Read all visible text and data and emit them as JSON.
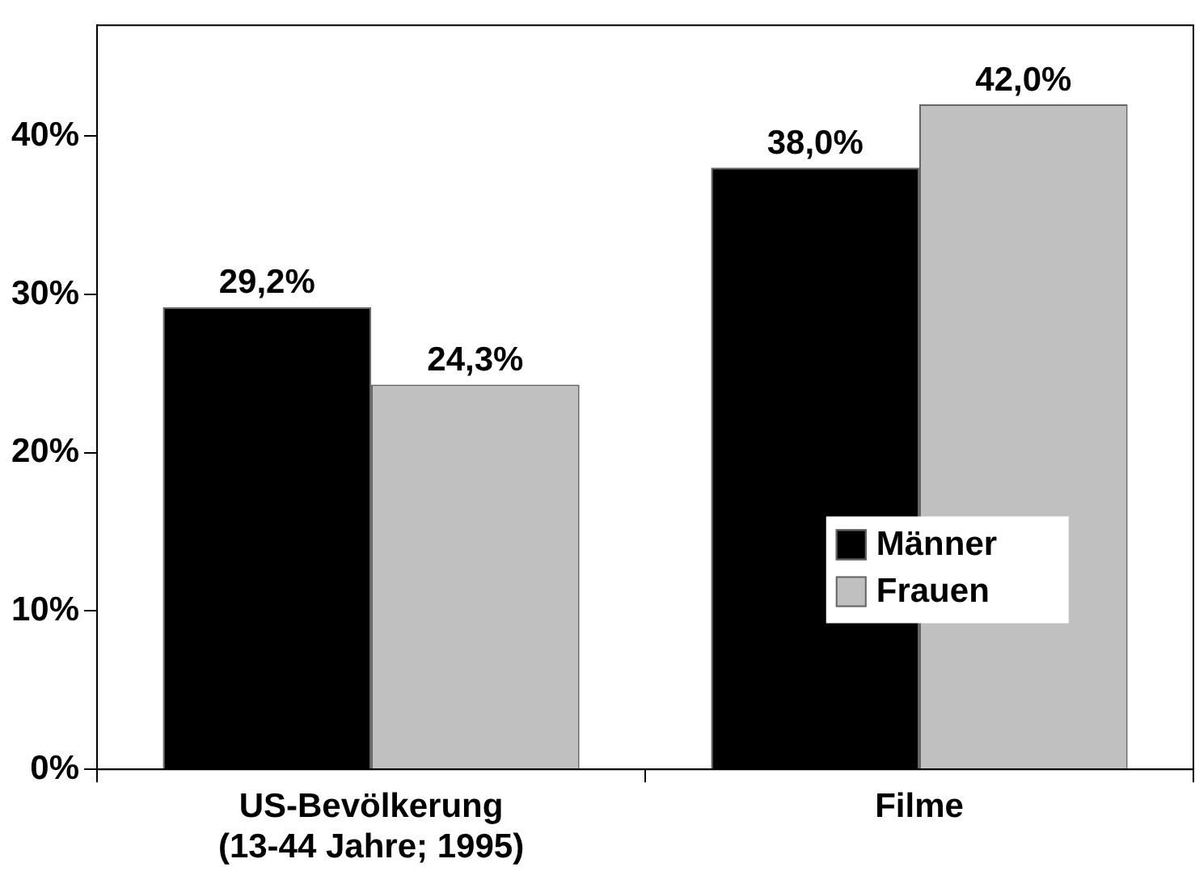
{
  "chart_data": {
    "type": "bar",
    "categories": [
      "US-Bevölkerung\n(13-44 Jahre; 1995)",
      "Filme"
    ],
    "series": [
      {
        "name": "Männer",
        "color": "#000000",
        "values": [
          29.2,
          38.0
        ],
        "value_labels": [
          "29,2%",
          "38,0%"
        ]
      },
      {
        "name": "Frauen",
        "color": "#c0c0c0",
        "values": [
          24.3,
          42.0
        ],
        "value_labels": [
          "24,3%",
          "42,0%"
        ]
      }
    ],
    "ylim": [
      0,
      47
    ],
    "yticks": [
      {
        "value": 0,
        "label": "0%"
      },
      {
        "value": 10,
        "label": "10%"
      },
      {
        "value": 20,
        "label": "20%"
      },
      {
        "value": 30,
        "label": "30%"
      },
      {
        "value": 40,
        "label": "40%"
      }
    ],
    "grid": false,
    "legend": "right"
  }
}
